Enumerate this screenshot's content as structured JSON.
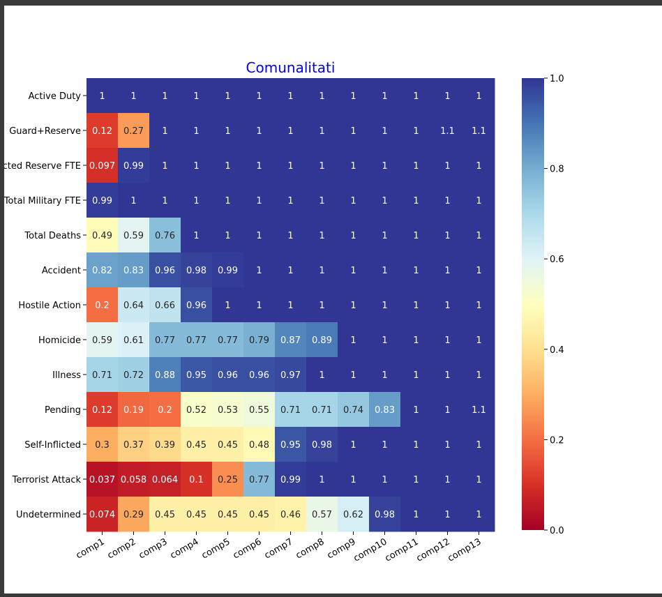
{
  "chart_data": {
    "type": "heatmap",
    "title": "Comunalitati",
    "title_color": "#0000ff",
    "colormap": "RdYlBu",
    "x_categories": [
      "comp1",
      "comp2",
      "comp3",
      "comp4",
      "comp5",
      "comp6",
      "comp7",
      "comp8",
      "comp9",
      "comp10",
      "comp11",
      "comp12",
      "comp13"
    ],
    "y_categories": [
      "Active Duty",
      "Guard+Reserve",
      "Selected Reserve FTE",
      "Total Military FTE",
      "Total Deaths",
      "Accident",
      "Hostile Action",
      "Homicide",
      "Illness",
      "Pending",
      "Self-Inflicted",
      "Terrorist Attack",
      "Undetermined"
    ],
    "values": [
      [
        1,
        1,
        1,
        1,
        1,
        1,
        1,
        1,
        1,
        1,
        1,
        1,
        1
      ],
      [
        0.12,
        0.27,
        1,
        1,
        1,
        1,
        1,
        1,
        1,
        1,
        1,
        1.1,
        1.1
      ],
      [
        0.097,
        0.99,
        1,
        1,
        1,
        1,
        1,
        1,
        1,
        1,
        1,
        1,
        1
      ],
      [
        0.99,
        1,
        1,
        1,
        1,
        1,
        1,
        1,
        1,
        1,
        1,
        1,
        1
      ],
      [
        0.49,
        0.59,
        0.76,
        1,
        1,
        1,
        1,
        1,
        1,
        1,
        1,
        1,
        1
      ],
      [
        0.82,
        0.83,
        0.96,
        0.98,
        0.99,
        1,
        1,
        1,
        1,
        1,
        1,
        1,
        1
      ],
      [
        0.2,
        0.64,
        0.66,
        0.96,
        1,
        1,
        1,
        1,
        1,
        1,
        1,
        1,
        1
      ],
      [
        0.59,
        0.61,
        0.77,
        0.77,
        0.77,
        0.79,
        0.87,
        0.89,
        1,
        1,
        1,
        1,
        1
      ],
      [
        0.71,
        0.72,
        0.88,
        0.95,
        0.96,
        0.96,
        0.97,
        1,
        1,
        1,
        1,
        1,
        1
      ],
      [
        0.12,
        0.19,
        0.2,
        0.52,
        0.53,
        0.55,
        0.71,
        0.71,
        0.74,
        0.83,
        1,
        1,
        1.1
      ],
      [
        0.3,
        0.37,
        0.39,
        0.45,
        0.45,
        0.48,
        0.95,
        0.98,
        1,
        1,
        1,
        1,
        1
      ],
      [
        0.037,
        0.058,
        0.064,
        0.1,
        0.25,
        0.77,
        0.99,
        1,
        1,
        1,
        1,
        1,
        1
      ],
      [
        0.074,
        0.29,
        0.45,
        0.45,
        0.45,
        0.45,
        0.46,
        0.57,
        0.62,
        0.98,
        1,
        1,
        1
      ]
    ],
    "colorbar": {
      "range": [
        0,
        1
      ],
      "ticks": [
        0.0,
        0.2,
        0.4,
        0.6,
        0.8,
        1.0
      ],
      "tick_labels": [
        "0.0",
        "0.2",
        "0.4",
        "0.6",
        "0.8",
        "1.0"
      ]
    }
  }
}
